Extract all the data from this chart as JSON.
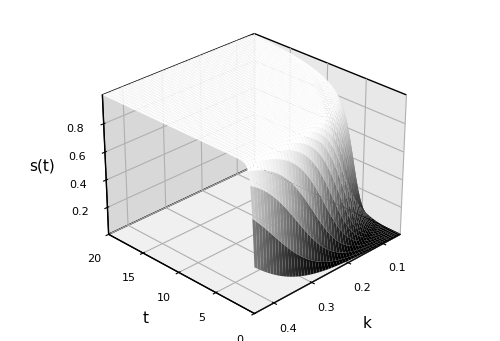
{
  "t_min": 0,
  "t_max": 20,
  "t_steps": 80,
  "k_min": 0.05,
  "k_max": 0.45,
  "k_steps": 50,
  "l_inf": 100.0,
  "t0": -1.0,
  "l50": 40.0,
  "l95": 55.0,
  "xlabel": "t",
  "ylabel": "k",
  "zlabel": "s(t)",
  "xticks": [
    0,
    5,
    10,
    15,
    20
  ],
  "yticks": [
    0.1,
    0.2,
    0.3,
    0.4
  ],
  "zticks": [
    0.2,
    0.4,
    0.6,
    0.8
  ],
  "elev": 28,
  "azim": -135,
  "cmap": "gray",
  "figsize": [
    5.0,
    3.41
  ],
  "dpi": 100,
  "vmin": 0.05,
  "vmax": 0.95
}
